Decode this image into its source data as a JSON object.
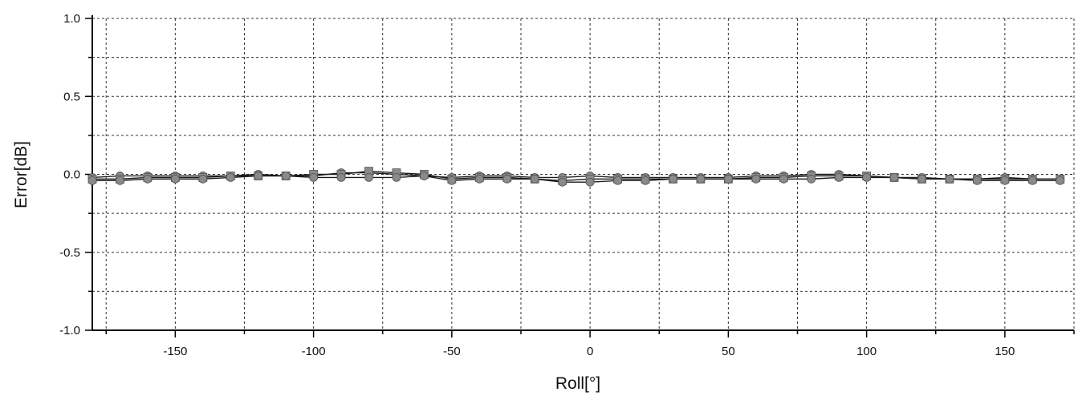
{
  "chart_data": {
    "type": "line",
    "title": "",
    "xlabel": "Roll[°]",
    "ylabel": "Error[dB]",
    "xlim": [
      -180,
      175
    ],
    "ylim": [
      -1.0,
      1.0
    ],
    "x_ticks": [
      -150,
      -100,
      -50,
      0,
      50,
      100,
      150
    ],
    "x_tick_labels": [
      "-150",
      "-100",
      "-50",
      "0",
      "50",
      "100",
      "150"
    ],
    "y_ticks": [
      -1.0,
      -0.5,
      0.0,
      0.5,
      1.0
    ],
    "y_tick_labels": [
      "-1.0",
      "-0.5",
      "0.0",
      "0.5",
      "1.0"
    ],
    "grid": true,
    "grid_style": "dashed",
    "legend": "none",
    "marker_color": "#8a8a8a",
    "line_color": "#1a1a1a",
    "x": [
      -180,
      -170,
      -160,
      -150,
      -140,
      -130,
      -120,
      -110,
      -100,
      -90,
      -80,
      -70,
      -60,
      -50,
      -40,
      -30,
      -20,
      -10,
      0,
      10,
      20,
      30,
      40,
      50,
      60,
      70,
      80,
      90,
      100,
      110,
      120,
      130,
      140,
      150,
      160,
      170
    ],
    "series": [
      {
        "values": [
          -0.02,
          -0.01,
          -0.01,
          -0.01,
          -0.01,
          -0.01,
          0.0,
          -0.01,
          -0.01,
          0.01,
          0.01,
          0.0,
          -0.01,
          -0.02,
          -0.01,
          -0.01,
          -0.02,
          -0.02,
          -0.01,
          -0.02,
          -0.02,
          -0.02,
          -0.02,
          -0.02,
          -0.01,
          -0.01,
          0.0,
          0.0,
          -0.01,
          -0.02,
          -0.02,
          -0.03,
          -0.03,
          -0.02,
          -0.03,
          -0.03
        ]
      },
      {
        "values": [
          -0.03,
          -0.03,
          -0.02,
          -0.02,
          -0.02,
          -0.01,
          -0.01,
          -0.01,
          0.0,
          0.0,
          0.02,
          0.01,
          0.0,
          -0.03,
          -0.02,
          -0.02,
          -0.03,
          -0.04,
          -0.03,
          -0.03,
          -0.03,
          -0.03,
          -0.03,
          -0.03,
          -0.02,
          -0.02,
          -0.01,
          -0.01,
          -0.01,
          -0.02,
          -0.03,
          -0.03,
          -0.03,
          -0.03,
          -0.03,
          -0.03
        ]
      },
      {
        "values": [
          -0.04,
          -0.04,
          -0.03,
          -0.03,
          -0.03,
          -0.02,
          -0.01,
          -0.01,
          -0.02,
          -0.02,
          -0.02,
          -0.02,
          -0.01,
          -0.04,
          -0.03,
          -0.03,
          -0.03,
          -0.05,
          -0.05,
          -0.04,
          -0.04,
          -0.03,
          -0.03,
          -0.03,
          -0.03,
          -0.03,
          -0.03,
          -0.02,
          -0.02,
          -0.02,
          -0.03,
          -0.03,
          -0.04,
          -0.04,
          -0.04,
          -0.04
        ]
      }
    ]
  }
}
